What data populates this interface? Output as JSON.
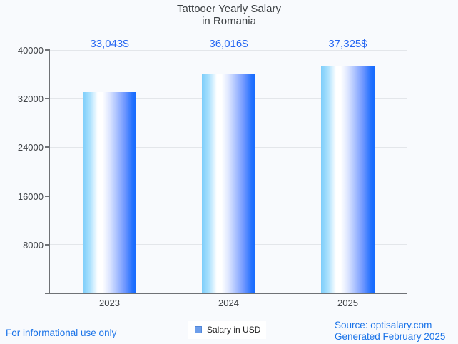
{
  "title": {
    "line1": "Tattooer Yearly Salary",
    "line2": "in Romania"
  },
  "legend": {
    "label": "Salary in USD",
    "swatch_color": "#6d9eeb"
  },
  "footer": {
    "disclaimer": "For informational use only",
    "source_prefix": "Source: ",
    "source_site": "optisalary.com",
    "generated": "Generated February 2025",
    "link_color": "#1a73e8"
  },
  "chart_data": {
    "type": "bar",
    "title": "Tattooer Yearly Salary in Romania",
    "categories": [
      "2023",
      "2024",
      "2025"
    ],
    "series": [
      {
        "name": "Salary in USD",
        "values": [
          33043,
          36016,
          37325
        ]
      }
    ],
    "value_labels": [
      "33,043$",
      "36,016$",
      "37,325$"
    ],
    "xlabel": "",
    "ylabel": "",
    "ylim": [
      0,
      40000
    ],
    "yticks": [
      8000,
      16000,
      24000,
      32000,
      40000
    ],
    "grid": true,
    "legend_position": "bottom",
    "colors": {
      "bar_gradient": [
        "#7ccdfa",
        "#ffffff",
        "#146afe"
      ],
      "value_label": "#2566f2",
      "axis": "#6f7276",
      "gridline": "#e3e6ea",
      "background": "#f8fafd"
    }
  }
}
